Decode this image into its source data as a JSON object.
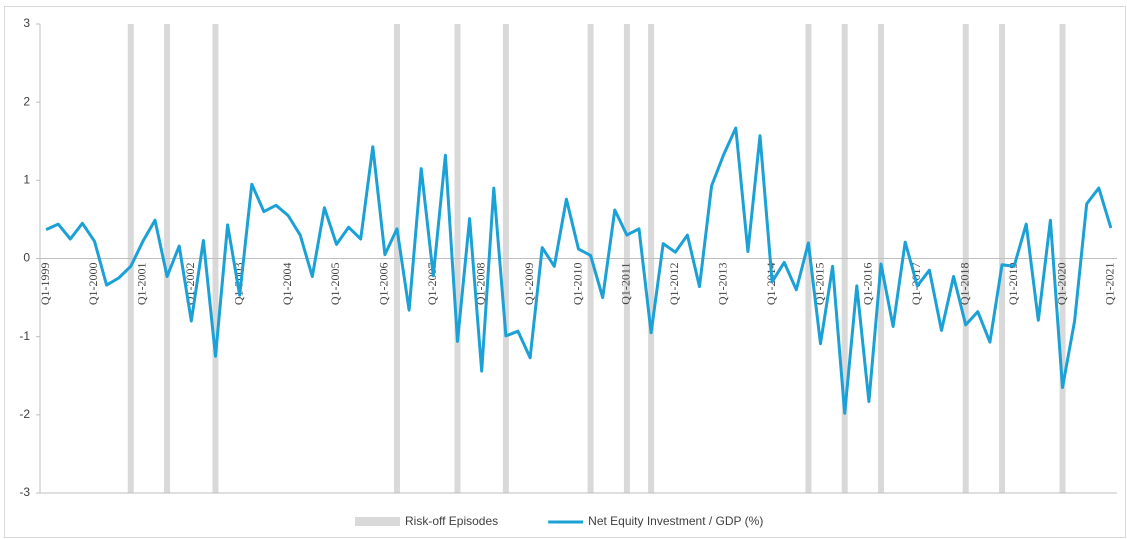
{
  "chart_data": {
    "type": "line",
    "categories": [
      "Q1-1999",
      null,
      null,
      null,
      "Q1-2000",
      null,
      null,
      null,
      "Q1-2001",
      null,
      null,
      null,
      "Q1-2002",
      null,
      null,
      null,
      "Q1-2003",
      null,
      null,
      null,
      "Q1-2004",
      null,
      null,
      null,
      "Q1-2005",
      null,
      null,
      null,
      "Q1-2006",
      null,
      null,
      null,
      "Q1-2007",
      null,
      null,
      null,
      "Q1-2008",
      null,
      null,
      null,
      "Q1-2009",
      null,
      null,
      null,
      "Q1-2010",
      null,
      null,
      null,
      "Q1-2011",
      null,
      null,
      null,
      "Q1-2012",
      null,
      null,
      null,
      "Q1-2013",
      null,
      null,
      null,
      "Q1-2014",
      null,
      null,
      null,
      "Q1-2015",
      null,
      null,
      null,
      "Q1-2016",
      null,
      null,
      null,
      "Q1-2017",
      null,
      null,
      null,
      "Q1-2018",
      null,
      null,
      null,
      "Q1-2019",
      null,
      null,
      null,
      "Q1-2020",
      null,
      null,
      null,
      "Q1-2021"
    ],
    "series": [
      {
        "name": "Risk-off Episodes",
        "type": "band",
        "color": "#d9d9d9",
        "values": [
          0,
          0,
          0,
          0,
          0,
          0,
          0,
          1,
          0,
          0,
          1,
          0,
          0,
          0,
          1,
          0,
          0,
          0,
          0,
          0,
          0,
          0,
          0,
          0,
          0,
          0,
          0,
          0,
          0,
          1,
          0,
          0,
          0,
          0,
          1,
          0,
          0,
          0,
          1,
          0,
          0,
          0,
          0,
          0,
          0,
          1,
          0,
          0,
          1,
          0,
          1,
          0,
          0,
          0,
          0,
          0,
          0,
          0,
          0,
          0,
          0,
          0,
          0,
          1,
          0,
          0,
          1,
          0,
          0,
          1,
          0,
          0,
          0,
          0,
          0,
          0,
          1,
          0,
          0,
          1,
          0,
          0,
          0,
          0,
          1,
          0,
          0,
          0,
          0
        ]
      },
      {
        "name": "Net Equity Investment / GDP (%)",
        "type": "line",
        "color": "#1ba1d6",
        "values": [
          0.37,
          0.44,
          0.25,
          0.45,
          0.22,
          -0.34,
          -0.25,
          -0.1,
          0.22,
          0.49,
          -0.23,
          0.16,
          -0.8,
          0.23,
          -1.25,
          0.43,
          -0.47,
          0.95,
          0.6,
          0.68,
          0.55,
          0.3,
          -0.23,
          0.65,
          0.18,
          0.4,
          0.25,
          1.43,
          0.05,
          0.38,
          -0.66,
          1.15,
          -0.22,
          1.32,
          -1.06,
          0.51,
          -1.44,
          0.9,
          -0.99,
          -0.93,
          -1.27,
          0.14,
          -0.1,
          0.76,
          0.12,
          0.04,
          -0.5,
          0.62,
          0.3,
          0.38,
          -0.95,
          0.19,
          0.08,
          0.3,
          -0.36,
          0.93,
          1.33,
          1.67,
          0.09,
          1.57,
          -0.3,
          -0.05,
          -0.4,
          0.2,
          -1.09,
          -0.1,
          -1.98,
          -0.35,
          -1.83,
          -0.07,
          -0.87,
          0.21,
          -0.35,
          -0.15,
          -0.92,
          -0.23,
          -0.85,
          -0.68,
          -1.07,
          -0.08,
          -0.1,
          0.44,
          -0.79,
          0.49,
          -1.65,
          -0.8,
          0.7,
          0.9,
          0.39
        ]
      }
    ],
    "ylim": [
      -3,
      3
    ],
    "yticks": [
      -3,
      -2,
      -1,
      0,
      1,
      2,
      3
    ],
    "grid": false
  }
}
